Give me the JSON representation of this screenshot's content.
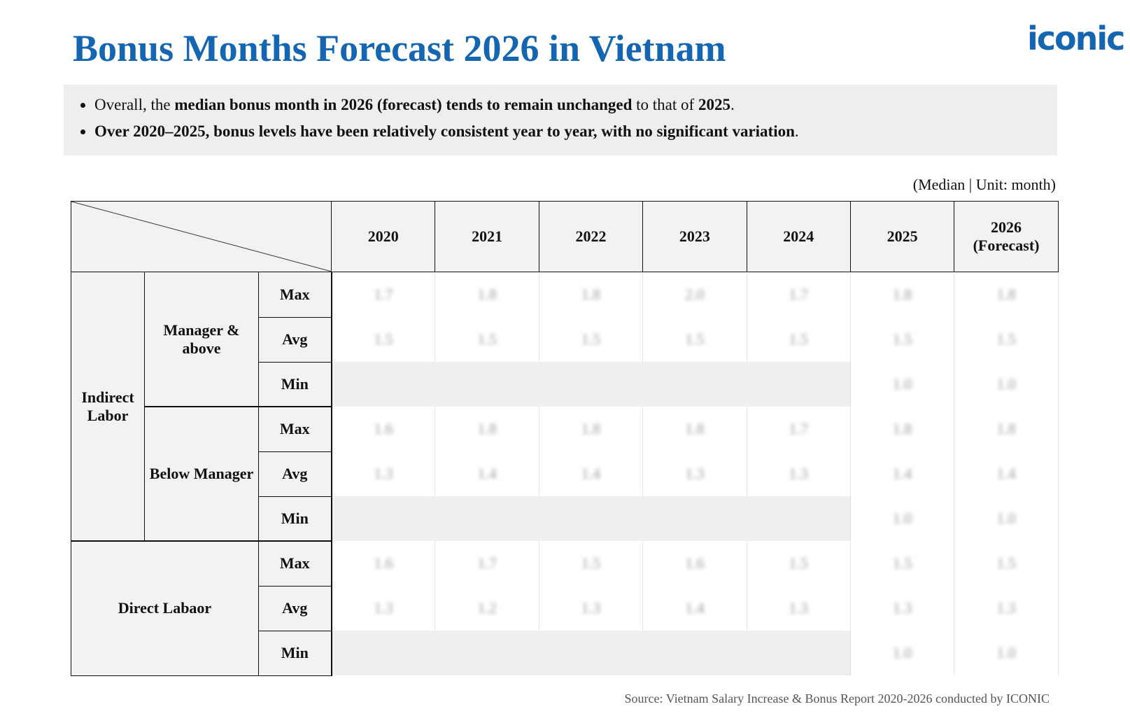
{
  "header": {
    "title": "Bonus Months Forecast 2026 in Vietnam",
    "logo": "iconic"
  },
  "summary": {
    "b1": {
      "p1": "Overall, the ",
      "b1": "median bonus month in 2026 (forecast) tends to remain unchanged",
      "p2": " to that of ",
      "b2": "2025",
      "p3": "."
    },
    "b2": {
      "b1": "Over 2020–2025, bonus levels have been relatively consistent year to year, with no significant variation",
      "p1": "."
    }
  },
  "unit_note": "(Median | Unit: month)",
  "table": {
    "years": [
      "2020",
      "2021",
      "2022",
      "2023",
      "2024",
      "2025",
      "2026\n(Forecast)"
    ],
    "groups": {
      "indirect": "Indirect Labor",
      "manager": "Manager & above",
      "below": "Below Manager",
      "direct": "Direct Labaor"
    },
    "metrics": {
      "max": "Max",
      "avg": "Avg",
      "min": "Min"
    },
    "rows": {
      "mgr_max": [
        "1.7",
        "1.8",
        "1.8",
        "2.0",
        "1.7",
        "1.8",
        "1.8"
      ],
      "mgr_avg": [
        "1.5",
        "1.5",
        "1.5",
        "1.5",
        "1.5",
        "1.5",
        "1.5"
      ],
      "mgr_min": [
        "1.0",
        "1.0"
      ],
      "bm_max": [
        "1.6",
        "1.8",
        "1.8",
        "1.8",
        "1.7",
        "1.8",
        "1.8"
      ],
      "bm_avg": [
        "1.3",
        "1.4",
        "1.4",
        "1.3",
        "1.3",
        "1.4",
        "1.4"
      ],
      "bm_min": [
        "1.0",
        "1.0"
      ],
      "dl_max": [
        "1.6",
        "1.7",
        "1.5",
        "1.6",
        "1.5",
        "1.5",
        "1.5"
      ],
      "dl_avg": [
        "1.3",
        "1.2",
        "1.3",
        "1.4",
        "1.3",
        "1.3",
        "1.3"
      ],
      "dl_min": [
        "1.0",
        "1.0"
      ]
    }
  },
  "source": "Source: Vietnam Salary Increase & Bonus Report 2020-2026 conducted by ICONIC"
}
